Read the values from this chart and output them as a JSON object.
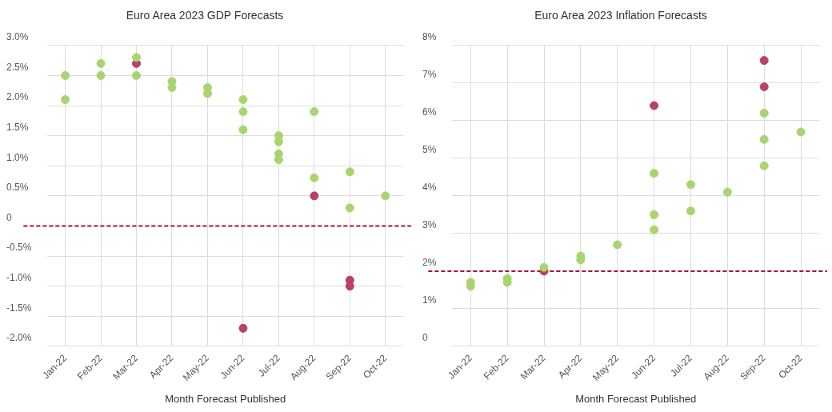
{
  "chart_data": [
    {
      "type": "scatter",
      "title": "Euro Area 2023 GDP Forecasts",
      "xlabel": "Month Forecast Published",
      "categories": [
        "Jan-22",
        "Feb-22",
        "Mar-22",
        "Apr-22",
        "May-22",
        "Jun-22",
        "Jul-22",
        "Aug-22",
        "Sep-22",
        "Oct-22"
      ],
      "ylim": [
        -2,
        3
      ],
      "yticks": [
        {
          "value": -2,
          "label": "-2.0%"
        },
        {
          "value": -1.5,
          "label": "-1.5%"
        },
        {
          "value": -1,
          "label": "-1.0%"
        },
        {
          "value": -0.5,
          "label": "-0.5%"
        },
        0,
        {
          "value": 0.5,
          "label": "0.5%"
        },
        {
          "value": 1,
          "label": "1.0%"
        },
        {
          "value": 1.5,
          "label": "1.5%"
        },
        {
          "value": 2,
          "label": "2.0%"
        },
        {
          "value": 2.5,
          "label": "2.5%"
        },
        {
          "value": 3,
          "label": "3.0%"
        }
      ],
      "series": [
        {
          "color": "#a9d46f",
          "x": [
            "Jan-22",
            "Jan-22",
            "Feb-22",
            "Feb-22",
            "Mar-22",
            "Mar-22",
            "Apr-22",
            "Apr-22",
            "May-22",
            "May-22",
            "Jun-22",
            "Jun-22",
            "Jun-22",
            "Jul-22",
            "Jul-22",
            "Jul-22",
            "Jul-22",
            "Aug-22",
            "Aug-22",
            "Sep-22",
            "Sep-22",
            "Oct-22"
          ],
          "values": [
            2.5,
            2.1,
            2.7,
            2.5,
            2.8,
            2.5,
            2.4,
            2.3,
            2.3,
            2.2,
            2.1,
            1.9,
            1.6,
            1.5,
            1.4,
            1.2,
            1.1,
            1.9,
            0.8,
            0.9,
            0.3,
            0.5
          ]
        },
        {
          "color": "#b8406a",
          "x": [
            "Mar-22",
            "Jun-22",
            "Aug-22",
            "Sep-22",
            "Sep-22"
          ],
          "values": [
            2.7,
            -1.7,
            0.5,
            -0.9,
            -1.0
          ]
        }
      ],
      "ref_lines": [
        {
          "axis": "y",
          "value": 0,
          "color": "#a0153e",
          "line_style": "dashed"
        }
      ],
      "grid": true,
      "marker": "circle"
    },
    {
      "type": "scatter",
      "title": "Euro Area 2023 Inflation Forecasts",
      "xlabel": "Month Forecast Published",
      "categories": [
        "Jan-22",
        "Feb-22",
        "Mar-22",
        "Apr-22",
        "May-22",
        "Jun-22",
        "Jul-22",
        "Aug-22",
        "Sep-22",
        "Oct-22"
      ],
      "ylim": [
        0,
        8
      ],
      "yticks": [
        0,
        {
          "value": 1,
          "label": "1%"
        },
        {
          "value": 2,
          "label": "2%"
        },
        {
          "value": 3,
          "label": "3%"
        },
        {
          "value": 4,
          "label": "4%"
        },
        {
          "value": 5,
          "label": "5%"
        },
        {
          "value": 6,
          "label": "6%"
        },
        {
          "value": 7,
          "label": "7%"
        },
        {
          "value": 8,
          "label": "8%"
        }
      ],
      "series": [
        {
          "color": "#a9d46f",
          "x": [
            "Jan-22",
            "Jan-22",
            "Feb-22",
            "Feb-22",
            "Mar-22",
            "Apr-22",
            "Apr-22",
            "May-22",
            "Jun-22",
            "Jun-22",
            "Jun-22",
            "Jul-22",
            "Jul-22",
            "Aug-22",
            "Sep-22",
            "Sep-22",
            "Sep-22",
            "Oct-22"
          ],
          "values": [
            1.7,
            1.6,
            1.8,
            1.7,
            2.1,
            2.4,
            2.3,
            2.7,
            4.6,
            3.5,
            3.1,
            4.3,
            3.6,
            4.1,
            6.2,
            5.5,
            4.8,
            5.7
          ]
        },
        {
          "color": "#b8406a",
          "x": [
            "Mar-22",
            "Jun-22",
            "Sep-22",
            "Sep-22"
          ],
          "values": [
            2.0,
            6.4,
            7.6,
            6.9
          ]
        }
      ],
      "ref_lines": [
        {
          "axis": "y",
          "value": 2,
          "color": "#a0153e",
          "line_style": "dashed"
        }
      ],
      "grid": true,
      "marker": "circle"
    }
  ]
}
